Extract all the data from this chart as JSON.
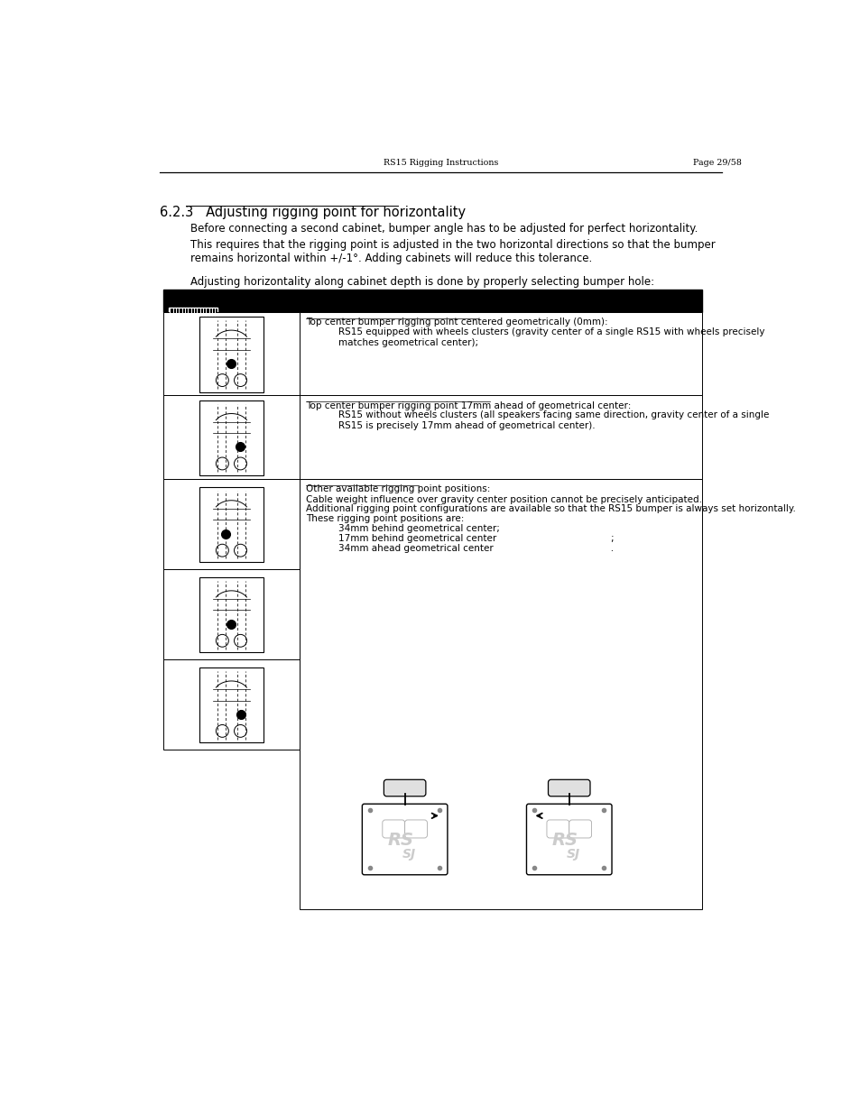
{
  "page_header_left": "RS15 Rigging Instructions",
  "page_header_right": "Page 29/58",
  "section_title": "6.2.3   Adjusting rigging point for horizontality",
  "para1": "Before connecting a second cabinet, bumper angle has to be adjusted for perfect horizontality.",
  "para2": "This requires that the rigging point is adjusted in the two horizontal directions so that the bumper\nremains horizontal within +/-1°. Adding cabinets will reduce this tolerance.",
  "para3": "Adjusting horizontality along cabinet depth is done by properly selecting bumper hole:",
  "row1_title": "Top center bumper rigging point centered geometrically (0mm):",
  "row1_text": "RS15 equipped with wheels clusters (gravity center of a single RS15 with wheels precisely\nmatches geometrical center);",
  "row2_title": "Top center bumper rigging point 17mm ahead of geometrical center:",
  "row2_text": "RS15 without wheels clusters (all speakers facing same direction, gravity center of a single\nRS15 is precisely 17mm ahead of geometrical center).",
  "row3_title": "Other available rigging point positions:",
  "row3_text1": "Cable weight influence over gravity center position cannot be precisely anticipated.",
  "row3_text2": "Additional rigging point configurations are available so that the RS15 bumper is always set horizontally.",
  "row3_text3": "These rigging point positions are:",
  "row3_item1": "34mm behind geometrical center;",
  "row3_item2": "17mm behind geometrical center                                       ;",
  "row3_item3": "34mm ahead geometrical center                                        .",
  "bg_color": "#ffffff",
  "text_color": "#000000",
  "table_border_color": "#000000",
  "header_bg_color": "#000000",
  "header_text_color": "#ffffff",
  "fig_width": 9.54,
  "fig_height": 12.35,
  "dpi": 100
}
